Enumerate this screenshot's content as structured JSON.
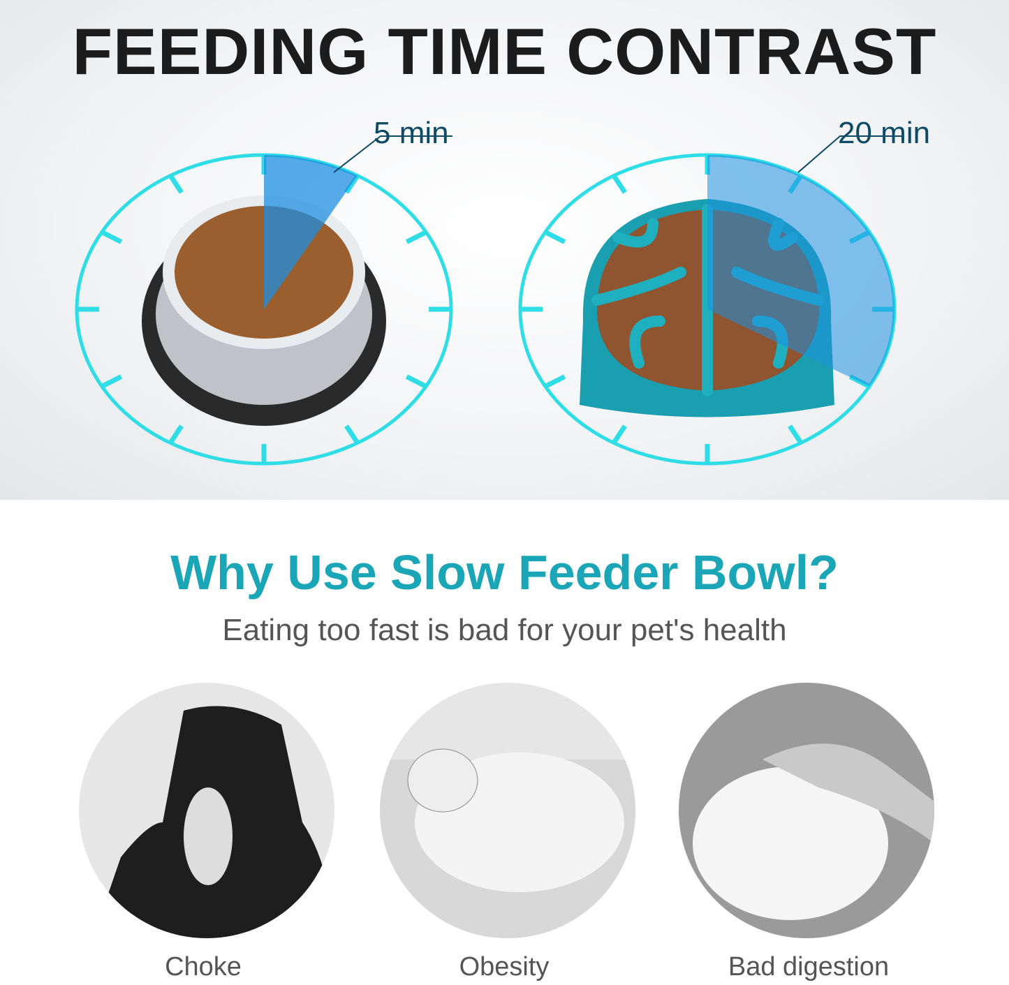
{
  "header": {
    "title": "FEEDING TIME CONTRAST"
  },
  "comparison": [
    {
      "bowl": "regular stainless steel bowl",
      "time_label": "5 min",
      "minutes": 5
    },
    {
      "bowl": "slow feeder bowl",
      "time_label": "20 min",
      "minutes": 20
    }
  ],
  "section": {
    "heading": "Why Use Slow Feeder Bowl?",
    "subheading": "Eating too fast is bad for your pet's health"
  },
  "problems": [
    {
      "label": "Choke"
    },
    {
      "label": "Obesity"
    },
    {
      "label": "Bad digestion"
    }
  ],
  "colors": {
    "dial": "#2fdde6",
    "wedge": "#1e8fe0",
    "heading": "#1aa6b7",
    "bowl_teal": "#1a9fb0",
    "label": "#0d4a66"
  }
}
